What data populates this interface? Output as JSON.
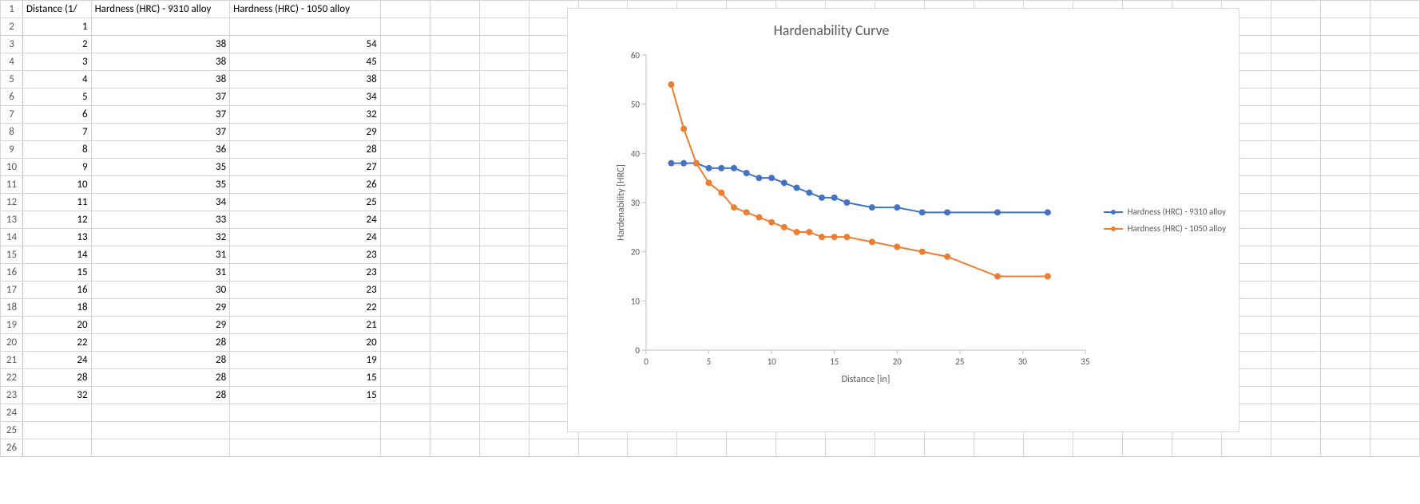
{
  "spreadsheet": {
    "headers": [
      "Distance (1/",
      "Hardness (HRC) - 9310 alloy",
      "Hardness (HRC) - 1050 alloy"
    ],
    "rows": [
      {
        "n": 1,
        "d": 1,
        "h9310": "",
        "h1050": ""
      },
      {
        "n": 2,
        "d": 2,
        "h9310": 38,
        "h1050": 54
      },
      {
        "n": 3,
        "d": 3,
        "h9310": 38,
        "h1050": 45
      },
      {
        "n": 4,
        "d": 4,
        "h9310": 38,
        "h1050": 38
      },
      {
        "n": 5,
        "d": 5,
        "h9310": 37,
        "h1050": 34
      },
      {
        "n": 6,
        "d": 6,
        "h9310": 37,
        "h1050": 32
      },
      {
        "n": 7,
        "d": 7,
        "h9310": 37,
        "h1050": 29
      },
      {
        "n": 8,
        "d": 8,
        "h9310": 36,
        "h1050": 28
      },
      {
        "n": 9,
        "d": 9,
        "h9310": 35,
        "h1050": 27
      },
      {
        "n": 10,
        "d": 10,
        "h9310": 35,
        "h1050": 26
      },
      {
        "n": 11,
        "d": 11,
        "h9310": 34,
        "h1050": 25
      },
      {
        "n": 12,
        "d": 12,
        "h9310": 33,
        "h1050": 24
      },
      {
        "n": 13,
        "d": 13,
        "h9310": 32,
        "h1050": 24
      },
      {
        "n": 14,
        "d": 14,
        "h9310": 31,
        "h1050": 23
      },
      {
        "n": 15,
        "d": 15,
        "h9310": 31,
        "h1050": 23
      },
      {
        "n": 16,
        "d": 16,
        "h9310": 30,
        "h1050": 23
      },
      {
        "n": 17,
        "d": 18,
        "h9310": 29,
        "h1050": 22
      },
      {
        "n": 18,
        "d": 20,
        "h9310": 29,
        "h1050": 21
      },
      {
        "n": 19,
        "d": 22,
        "h9310": 28,
        "h1050": 20
      },
      {
        "n": 20,
        "d": 24,
        "h9310": 28,
        "h1050": 19
      },
      {
        "n": 21,
        "d": 28,
        "h9310": 28,
        "h1050": 15
      },
      {
        "n": 22,
        "d": 32,
        "h9310": 28,
        "h1050": 15
      }
    ],
    "empty_rows": [
      24,
      25,
      26
    ],
    "blank_cols": 21
  },
  "chart": {
    "title": "Hardenability Curve",
    "xlabel": "Distance [in]",
    "ylabel": "Hardenability [HRC]",
    "xlim": [
      0,
      35
    ],
    "ylim": [
      0,
      60
    ],
    "xtick_step": 5,
    "ytick_step": 10,
    "title_fontsize": 18,
    "label_fontsize": 12,
    "tick_fontsize": 11,
    "background_color": "#ffffff",
    "axis_color": "#bfbfbf",
    "marker_radius": 3.5,
    "line_width": 2,
    "series": [
      {
        "name": "Hardness (HRC) - 9310 alloy",
        "color": "#4472c4",
        "x": [
          2,
          3,
          4,
          5,
          6,
          7,
          8,
          9,
          10,
          11,
          12,
          13,
          14,
          15,
          16,
          18,
          20,
          22,
          24,
          28,
          32
        ],
        "y": [
          38,
          38,
          38,
          37,
          37,
          37,
          36,
          35,
          35,
          34,
          33,
          32,
          31,
          31,
          30,
          29,
          29,
          28,
          28,
          28,
          28
        ]
      },
      {
        "name": "Hardness (HRC) - 1050 alloy",
        "color": "#ed7d31",
        "x": [
          2,
          3,
          4,
          5,
          6,
          7,
          8,
          9,
          10,
          11,
          12,
          13,
          14,
          15,
          16,
          18,
          20,
          22,
          24,
          28,
          32
        ],
        "y": [
          54,
          45,
          38,
          34,
          32,
          29,
          28,
          27,
          26,
          25,
          24,
          24,
          23,
          23,
          23,
          22,
          21,
          20,
          19,
          15,
          15
        ]
      }
    ]
  }
}
